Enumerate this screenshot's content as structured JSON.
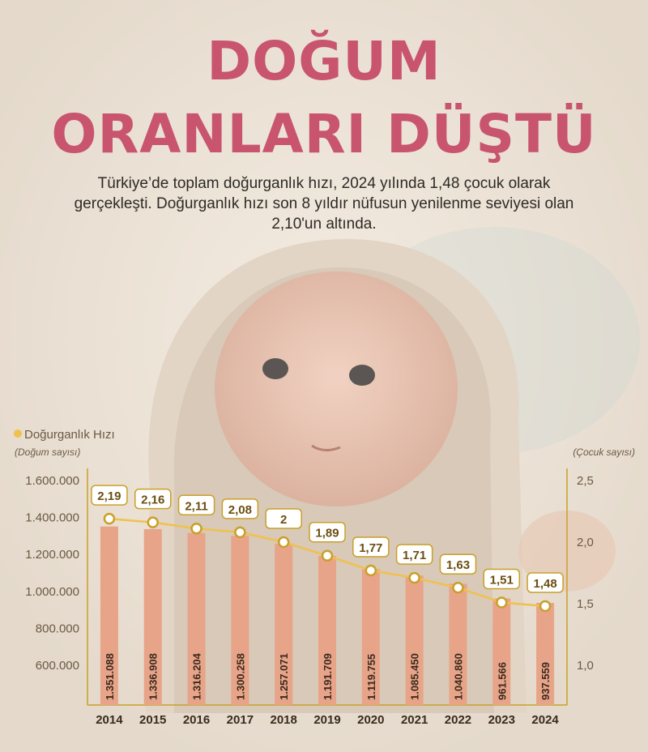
{
  "header": {
    "title_line1": "DOĞUM",
    "title_line2": "ORANLARI DÜŞTÜ",
    "subtitle": "Türkiye’de toplam doğurganlık hızı, 2024 yılında 1,48 çocuk olarak gerçekleşti. Doğurganlık hızı son 8 yıldır nüfusun yenilenme seviyesi olan 2,10'un altında."
  },
  "colors": {
    "title": "#c8546d",
    "bar": "#e8a488",
    "line": "#f0c14d",
    "axis_text": "#6b5a44",
    "label_border": "#c9a028",
    "label_text": "#6b4f12"
  },
  "chart_data": {
    "type": "bar+line",
    "legend": "Doğurganlık Hızı",
    "y_left_label": "(Doğum sayısı)",
    "y_right_label": "(Çocuk sayısı)",
    "categories": [
      "2014",
      "2015",
      "2016",
      "2017",
      "2018",
      "2019",
      "2020",
      "2021",
      "2022",
      "2023",
      "2024"
    ],
    "bars": {
      "values": [
        1351088,
        1336908,
        1316204,
        1300258,
        1257071,
        1191709,
        1119755,
        1085450,
        1040860,
        961566,
        937559
      ],
      "labels": [
        "1.351.088",
        "1.336.908",
        "1.316.204",
        "1.300.258",
        "1.257.071",
        "1.191.709",
        "1.119.755",
        "1.085.450",
        "1.040.860",
        "961.566",
        "937.559"
      ]
    },
    "line": {
      "values": [
        2.19,
        2.16,
        2.11,
        2.08,
        2.0,
        1.89,
        1.77,
        1.71,
        1.63,
        1.51,
        1.48
      ],
      "labels": [
        "2,19",
        "2,16",
        "2,11",
        "2,08",
        "2",
        "1,89",
        "1,77",
        "1,71",
        "1,63",
        "1,51",
        "1,48"
      ]
    },
    "y_left_ticks": [
      "1.600.000",
      "1.400.000",
      "1.200.000",
      "1.000.000",
      "800.000",
      "600.000"
    ],
    "y_left_tick_values": [
      1600000,
      1400000,
      1200000,
      1000000,
      800000,
      600000
    ],
    "y_right_ticks": [
      "2,5",
      "2,0",
      "1,5",
      "1,0"
    ],
    "y_right_tick_values": [
      2.5,
      2.0,
      1.5,
      1.0
    ]
  }
}
